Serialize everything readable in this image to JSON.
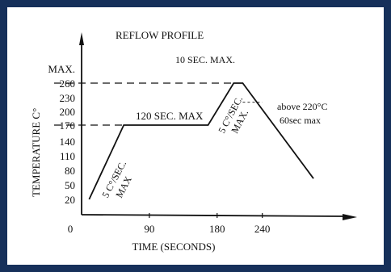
{
  "frame_color": "#16305a",
  "chart_data": {
    "type": "line",
    "title": "REFLOW PROFILE",
    "xlabel": "TIME (SECONDS)",
    "ylabel": "TEMPERATURE C°",
    "x_ticks": [
      "0",
      "90",
      "180",
      "240"
    ],
    "x_tick_values": [
      0,
      90,
      180,
      240
    ],
    "y_ticks": [
      "MAX.",
      "260",
      "230",
      "200",
      "170",
      "140",
      "110",
      "80",
      "50",
      "20"
    ],
    "xlim": [
      -5,
      330
    ],
    "series": [
      {
        "points": [
          {
            "x": 10,
            "y": 20
          },
          {
            "x": 56,
            "y": 170
          },
          {
            "x": 168,
            "y": 170
          },
          {
            "x": 202,
            "y": 260
          },
          {
            "x": 214,
            "y": 260
          },
          {
            "x": 308,
            "y": 63
          }
        ]
      }
    ],
    "reference_lines": [
      {
        "y": 260,
        "x_from": -5,
        "x_to": 202,
        "style": "dashed"
      },
      {
        "y": 170,
        "x_from": -5,
        "x_to": 56,
        "style": "dashed"
      },
      {
        "y": 220,
        "x_from": 214,
        "x_to": 240,
        "style": "dashed"
      }
    ],
    "annotations": [
      {
        "id": "ann-120sec",
        "text": "120 SEC. MAX"
      },
      {
        "id": "ann-10sec",
        "text": "10 SEC. MAX."
      },
      {
        "id": "ann-above220",
        "text": "above 220°C"
      },
      {
        "id": "ann-60sec",
        "text": "60sec max"
      },
      {
        "id": "ann-ramp-up1",
        "text": "5 C°/SEC."
      },
      {
        "id": "ann-ramp-up1b",
        "text": "MAX"
      },
      {
        "id": "ann-ramp-up2",
        "text": "5 C°/SEC."
      },
      {
        "id": "ann-ramp-up2b",
        "text": "MAX."
      }
    ]
  }
}
